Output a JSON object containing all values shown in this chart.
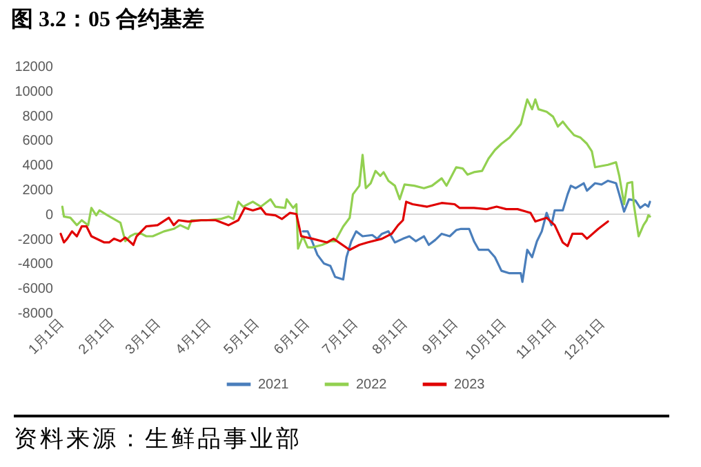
{
  "chart_data": {
    "type": "line",
    "title": "图 3.2：05 合约基差",
    "annotations": [
      "资料来源：生鲜品事业部"
    ],
    "xlim": [
      "--01-01",
      "--12-31"
    ],
    "xticks": [
      {
        "value": "--01-01",
        "label": "1月1日"
      },
      {
        "value": "--02-01",
        "label": "2月1日"
      },
      {
        "value": "--03-01",
        "label": "3月1日"
      },
      {
        "value": "--04-01",
        "label": "4月1日"
      },
      {
        "value": "--05-01",
        "label": "5月1日"
      },
      {
        "value": "--06-01",
        "label": "6月1日"
      },
      {
        "value": "--07-01",
        "label": "7月1日"
      },
      {
        "value": "--08-01",
        "label": "8月1日"
      },
      {
        "value": "--09-01",
        "label": "9月1日"
      },
      {
        "value": "--10-01",
        "label": "10月1日"
      },
      {
        "value": "--11-01",
        "label": "11月1日"
      },
      {
        "value": "--12-01",
        "label": "12月1日"
      }
    ],
    "ylim": [
      -8000,
      12000
    ],
    "yticks": [
      -8000,
      -6000,
      -4000,
      -2000,
      0,
      2000,
      4000,
      6000,
      8000,
      10000,
      12000
    ],
    "legend": "bottom",
    "series": [
      {
        "name": "2021",
        "color": "#4a7ebb",
        "x": [
          "--05-30",
          "--06-02",
          "--06-05",
          "--06-08",
          "--06-12",
          "--06-16",
          "--06-19",
          "--06-24",
          "--06-26",
          "--06-29",
          "--07-02",
          "--07-06",
          "--07-12",
          "--07-15",
          "--07-18",
          "--07-22",
          "--07-26",
          "--07-31",
          "--08-04",
          "--08-08",
          "--08-13",
          "--08-16",
          "--08-20",
          "--08-24",
          "--08-29",
          "--09-02",
          "--09-05",
          "--09-10",
          "--09-13",
          "--09-16",
          "--09-22",
          "--09-26",
          "--09-30",
          "--10-05",
          "--10-12",
          "--10-13",
          "--10-16",
          "--10-19",
          "--10-22",
          "--10-25",
          "--10-28",
          "--10-31",
          "--11-02",
          "--11-07",
          "--11-10",
          "--11-12",
          "--11-15",
          "--11-20",
          "--11-22",
          "--11-27",
          "--12-01",
          "--12-05",
          "--12-10",
          "--12-12",
          "--12-15",
          "--12-18",
          "--12-22",
          "--12-25",
          "--12-28",
          "--12-30",
          "--12-31"
        ],
        "values": [
          -1400,
          -1400,
          -2300,
          -3300,
          -4000,
          -4200,
          -5100,
          -5300,
          -3500,
          -2200,
          -1400,
          -1800,
          -1700,
          -2000,
          -1600,
          -1400,
          -2300,
          -2000,
          -1800,
          -2200,
          -1800,
          -2500,
          -2100,
          -1600,
          -1800,
          -1300,
          -1200,
          -1200,
          -2200,
          -2900,
          -2900,
          -3500,
          -4600,
          -4800,
          -4800,
          -5500,
          -2900,
          -3500,
          -2200,
          -1400,
          100,
          -900,
          300,
          300,
          1600,
          2300,
          2100,
          2500,
          1900,
          2500,
          2400,
          2700,
          2500,
          1600,
          200,
          1200,
          1100,
          500,
          800,
          600,
          1000
        ]
      },
      {
        "name": "2022",
        "color": "#92d050",
        "x": [
          "--01-02",
          "--01-03",
          "--01-07",
          "--01-11",
          "--01-14",
          "--01-18",
          "--01-20",
          "--01-23",
          "--01-25",
          "--01-30",
          "--02-07",
          "--02-10",
          "--02-13",
          "--02-16",
          "--02-20",
          "--02-23",
          "--02-27",
          "--03-05",
          "--03-11",
          "--03-15",
          "--03-20",
          "--03-22",
          "--03-31",
          "--04-09",
          "--04-14",
          "--04-17",
          "--04-20",
          "--04-23",
          "--04-26",
          "--04-29",
          "--05-04",
          "--05-10",
          "--05-13",
          "--05-19",
          "--05-20",
          "--05-24",
          "--05-26",
          "--05-27",
          "--05-30",
          "--06-02",
          "--06-05",
          "--06-11",
          "--06-16",
          "--06-19",
          "--06-24",
          "--06-28",
          "--06-30",
          "--07-04",
          "--07-06",
          "--07-08",
          "--07-11",
          "--07-14",
          "--07-17",
          "--07-19",
          "--07-22",
          "--07-26",
          "--07-29",
          "--08-01",
          "--08-07",
          "--08-13",
          "--08-18",
          "--08-24",
          "--08-27",
          "--09-02",
          "--09-06",
          "--09-09",
          "--09-13",
          "--09-18",
          "--09-22",
          "--09-26",
          "--09-30",
          "--10-05",
          "--10-12",
          "--10-16",
          "--10-19",
          "--10-21",
          "--10-23",
          "--10-28",
          "--11-01",
          "--11-04",
          "--11-07",
          "--11-10",
          "--11-14",
          "--11-18",
          "--11-22",
          "--11-25",
          "--11-27",
          "--12-01",
          "--12-05",
          "--12-10",
          "--12-12",
          "--12-15",
          "--12-17",
          "--12-20",
          "--12-21",
          "--12-24",
          "--12-27",
          "--12-29",
          "--12-30",
          "--12-31"
        ],
        "values": [
          600,
          -200,
          -300,
          -900,
          -500,
          -900,
          500,
          -100,
          300,
          -100,
          -700,
          -2200,
          -1800,
          -1600,
          -1600,
          -1800,
          -1800,
          -1400,
          -1200,
          -900,
          -1200,
          -500,
          -500,
          -400,
          -200,
          -400,
          1000,
          600,
          800,
          1000,
          600,
          1200,
          600,
          500,
          1200,
          500,
          800,
          -2800,
          -1800,
          -2700,
          -2700,
          -2500,
          -2200,
          -2200,
          -1000,
          -300,
          1600,
          2300,
          4800,
          2100,
          2500,
          3500,
          3100,
          3400,
          2700,
          2300,
          1200,
          2400,
          2300,
          2100,
          2300,
          2900,
          2300,
          3800,
          3700,
          3200,
          3400,
          3500,
          4500,
          5200,
          5700,
          6200,
          7300,
          9300,
          8500,
          9300,
          8500,
          8300,
          7900,
          7100,
          7500,
          7000,
          6400,
          6200,
          5700,
          5100,
          3800,
          3900,
          4000,
          4200,
          3100,
          800,
          2500,
          2600,
          800,
          -1800,
          -900,
          -500,
          -100,
          -200
        ]
      },
      {
        "name": "2023",
        "color": "#e00000",
        "x": [
          "--01-01",
          "--01-03",
          "--01-05",
          "--01-08",
          "--01-11",
          "--01-14",
          "--01-17",
          "--01-20",
          "--01-28",
          "--01-31",
          "--02-03",
          "--02-07",
          "--02-10",
          "--02-15",
          "--02-17",
          "--02-23",
          "--03-01",
          "--03-08",
          "--03-11",
          "--03-14",
          "--03-20",
          "--03-28",
          "--04-06",
          "--04-14",
          "--04-20",
          "--04-24",
          "--04-29",
          "--05-04",
          "--05-07",
          "--05-13",
          "--05-17",
          "--05-22",
          "--05-26",
          "--05-29",
          "--06-05",
          "--06-14",
          "--06-18",
          "--06-28",
          "--07-04",
          "--07-09",
          "--07-18",
          "--07-24",
          "--07-28",
          "--07-31",
          "--08-02",
          "--08-06",
          "--08-15",
          "--08-24",
          "--09-01",
          "--09-04",
          "--09-13",
          "--09-21",
          "--09-27",
          "--10-03",
          "--10-10",
          "--10-18",
          "--10-21",
          "--10-28",
          "--11-02",
          "--11-07",
          "--11-10",
          "--11-13",
          "--11-19",
          "--11-22",
          "--11-29",
          "--12-05"
        ],
        "values": [
          -1600,
          -2300,
          -2000,
          -1400,
          -1800,
          -1000,
          -1000,
          -1800,
          -2300,
          -2300,
          -2000,
          -2200,
          -1900,
          -2500,
          -1800,
          -1000,
          -900,
          -300,
          -900,
          -500,
          -600,
          -500,
          -500,
          -900,
          -500,
          500,
          300,
          500,
          0,
          -100,
          -400,
          100,
          0,
          -1800,
          -2000,
          -2300,
          -2000,
          -2900,
          -2500,
          -2300,
          -2000,
          -1600,
          -900,
          -500,
          1000,
          800,
          600,
          900,
          800,
          500,
          500,
          400,
          600,
          400,
          400,
          100,
          -600,
          -300,
          -900,
          -2300,
          -2600,
          -1600,
          -1600,
          -2000,
          -1200,
          -600
        ]
      }
    ]
  }
}
